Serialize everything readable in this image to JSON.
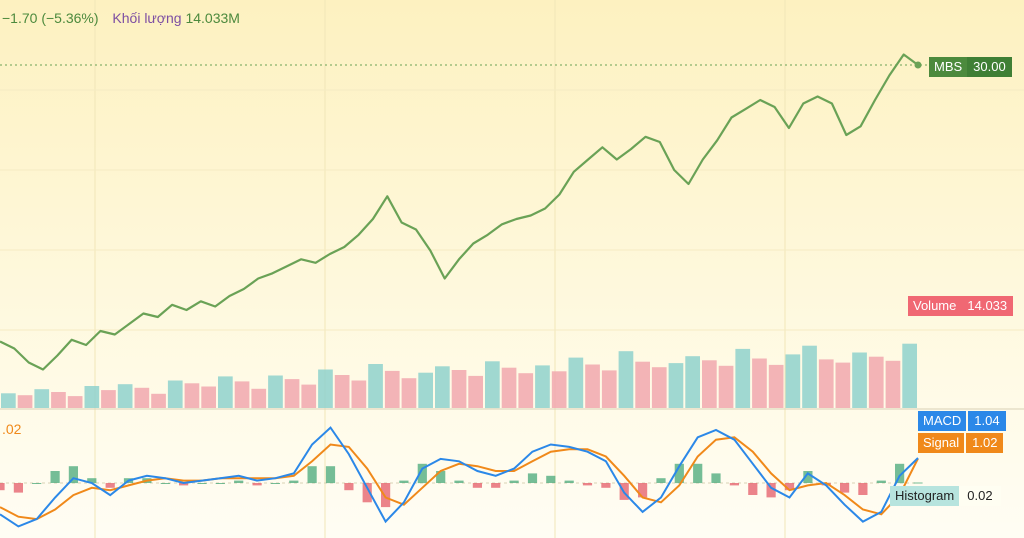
{
  "header": {
    "change": "−1.70 (−5.36%)",
    "volume_label": "Khối lượng",
    "volume_value": "14.033M"
  },
  "price_tag": {
    "symbol": "MBS",
    "value": "30.00"
  },
  "volume_tag": {
    "label": "Volume",
    "value": "14.033"
  },
  "macd_tag": {
    "label": "MACD",
    "value": "1.04"
  },
  "signal_tag": {
    "label": "Signal",
    "value": "1.02"
  },
  "histogram_tag": {
    "label": "Histogram",
    "value": "0.02"
  },
  "macd_header_value": ".02",
  "colors": {
    "price_line": "#6aa256",
    "volume_up": "#8fd1cc",
    "volume_down": "#f1a7ae",
    "macd": "#2b88e8",
    "signal": "#f0891a",
    "hist_up": "#3aa370",
    "hist_down": "#e2505e"
  },
  "chart_data": [
    {
      "type": "line",
      "series": [
        {
          "name": "MBS",
          "values": [
            14.2,
            13.8,
            13.0,
            12.6,
            13.4,
            14.3,
            14.0,
            14.8,
            14.6,
            15.2,
            15.8,
            15.6,
            16.3,
            16.0,
            16.5,
            16.2,
            16.8,
            17.2,
            17.8,
            18.1,
            18.5,
            18.9,
            18.7,
            19.2,
            19.6,
            20.3,
            21.2,
            22.5,
            21.0,
            20.6,
            19.4,
            17.8,
            18.9,
            19.8,
            20.3,
            20.9,
            21.2,
            21.4,
            21.8,
            22.6,
            23.9,
            24.6,
            25.3,
            24.6,
            25.2,
            25.9,
            25.6,
            24.0,
            23.2,
            24.6,
            25.7,
            27.0,
            27.5,
            28.0,
            27.6,
            26.4,
            27.8,
            28.2,
            27.8,
            26.0,
            26.5,
            28.0,
            29.4,
            30.6,
            30.0
          ]
        }
      ],
      "title": "",
      "xlabel": "",
      "ylabel": "",
      "ylim": [
        12,
        32
      ]
    },
    {
      "type": "bar",
      "series": [
        {
          "name": "Volume",
          "values": [
            3.2,
            2.8,
            4.1,
            3.5,
            2.6,
            4.8,
            3.9,
            5.2,
            4.4,
            3.1,
            6.0,
            5.4,
            4.7,
            6.9,
            5.8,
            4.2,
            7.1,
            6.3,
            5.1,
            8.4,
            7.2,
            6.0,
            9.6,
            8.1,
            6.5,
            7.7,
            9.1,
            8.3,
            7.0,
            10.2,
            8.8,
            7.6,
            9.3,
            8.0,
            11.0,
            9.5,
            8.2,
            12.4,
            10.1,
            8.9,
            9.8,
            11.3,
            10.4,
            9.2,
            12.9,
            10.8,
            9.4,
            11.7,
            13.6,
            10.6,
            9.9,
            12.1,
            11.2,
            10.3,
            14.033
          ]
        }
      ],
      "title": "",
      "xlabel": "",
      "ylabel": "",
      "ylim": [
        0,
        24
      ]
    },
    {
      "type": "line",
      "series": [
        {
          "name": "MACD",
          "values": [
            -1.3,
            -1.8,
            -1.5,
            -0.6,
            0.2,
            0.0,
            -0.5,
            0.1,
            0.3,
            0.2,
            0.0,
            0.1,
            0.2,
            0.3,
            0.1,
            0.2,
            0.4,
            1.6,
            2.3,
            1.2,
            -0.2,
            -1.6,
            -0.8,
            0.6,
            1.0,
            0.9,
            0.5,
            0.3,
            0.6,
            1.3,
            1.6,
            1.5,
            1.3,
            0.9,
            -0.4,
            -1.2,
            -0.6,
            0.7,
            1.9,
            2.2,
            1.8,
            0.8,
            -0.2,
            -0.6,
            0.4,
            -0.1,
            -0.9,
            -1.6,
            -1.2,
            0.3,
            1.04
          ]
        },
        {
          "name": "Signal",
          "values": [
            -1.0,
            -1.4,
            -1.5,
            -1.1,
            -0.5,
            -0.2,
            -0.3,
            -0.1,
            0.1,
            0.2,
            0.1,
            0.1,
            0.2,
            0.2,
            0.2,
            0.2,
            0.3,
            0.9,
            1.6,
            1.5,
            0.6,
            -0.6,
            -0.9,
            -0.2,
            0.5,
            0.8,
            0.7,
            0.5,
            0.5,
            0.9,
            1.3,
            1.4,
            1.4,
            1.1,
            0.3,
            -0.6,
            -0.8,
            -0.1,
            1.1,
            1.8,
            1.9,
            1.3,
            0.4,
            -0.3,
            -0.1,
            0.0,
            -0.5,
            -1.1,
            -1.3,
            -0.5,
            1.02
          ]
        }
      ],
      "title": "",
      "xlabel": "",
      "ylabel": "",
      "ylim": [
        -2.2,
        2.7
      ]
    }
  ]
}
